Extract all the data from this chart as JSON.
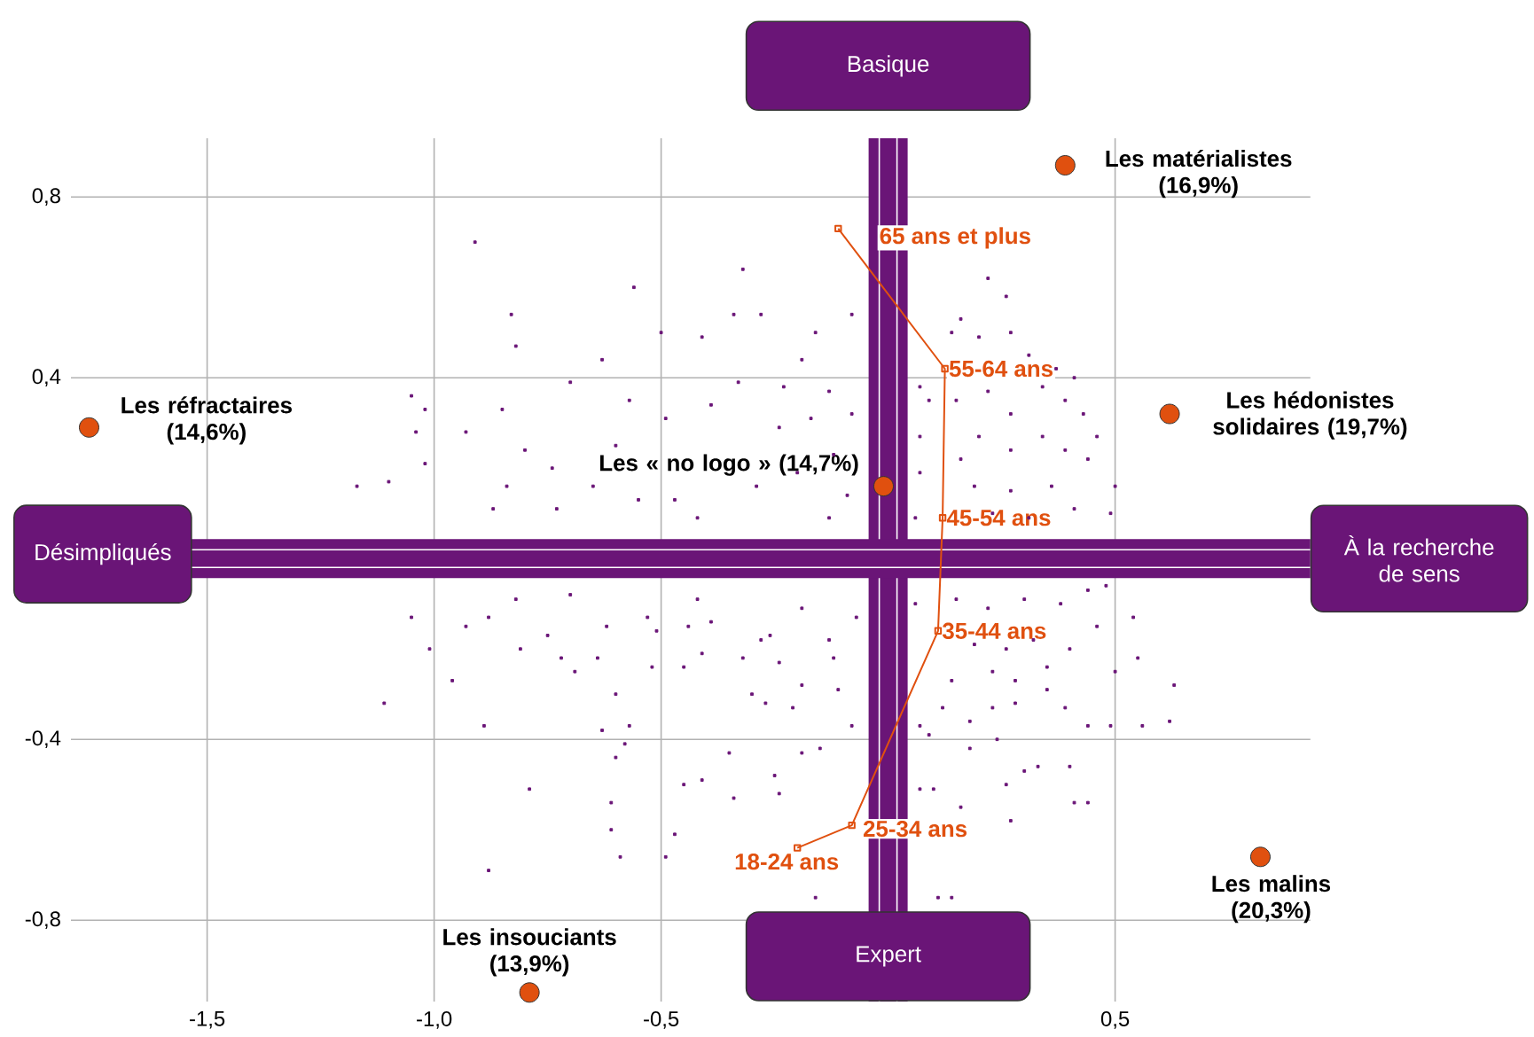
{
  "chart_data": {
    "type": "scatter",
    "xlim": [
      -1.8,
      0.93
    ],
    "ylim": [
      -0.98,
      0.93
    ],
    "xticks": [
      {
        "value": -1.5,
        "label": "-1,5"
      },
      {
        "value": -1.0,
        "label": "-1,0"
      },
      {
        "value": -0.5,
        "label": "-0,5"
      },
      {
        "value": 0.5,
        "label": "0,5"
      }
    ],
    "yticks": [
      {
        "value": -0.8,
        "label": "-0,8"
      },
      {
        "value": -0.4,
        "label": "-0,4"
      },
      {
        "value": 0.4,
        "label": "0,4"
      },
      {
        "value": 0.8,
        "label": "0,8"
      }
    ],
    "grid": true,
    "series": [
      {
        "type": "scatter",
        "color": "#6a1577",
        "marker": "square",
        "x": [
          -0.91,
          -0.32,
          -0.56,
          -0.83,
          -0.82,
          -0.34,
          -0.5,
          -0.41,
          -0.63,
          -1.05,
          -1.02,
          -1.04,
          -1.02,
          -1.17,
          -1.1,
          -0.85,
          -0.93,
          -0.8,
          -0.74,
          -0.7,
          -0.57,
          -0.84,
          -0.87,
          -0.73,
          -0.65,
          -0.55,
          -0.47,
          -0.42,
          -0.6,
          -0.49,
          -0.39,
          -0.33,
          -1.05,
          -1.01,
          -1.11,
          -0.96,
          -0.89,
          -0.79,
          -0.88,
          -0.61,
          -0.61,
          -0.59,
          -0.49,
          -0.47,
          -0.6,
          -0.58,
          -0.45,
          -0.41,
          -0.34,
          -0.35,
          -0.63,
          -0.57,
          -0.81,
          -0.72,
          -0.69,
          -0.64,
          -0.52,
          -0.6,
          -0.45,
          -0.41,
          -0.32,
          -0.3,
          -0.39,
          -0.44,
          -0.51,
          -0.62,
          -0.75,
          -0.93,
          -0.88,
          -0.82,
          -0.7,
          -0.53,
          -0.42,
          -0.26,
          0.63,
          0.62,
          0.56,
          0.54,
          0.55,
          0.5,
          0.49,
          0.44,
          0.41,
          0.4,
          0.3,
          0.33,
          0.26,
          0.27,
          0.16,
          0.1,
          0.07,
          0.14,
          0.11,
          -0.16,
          -0.24,
          -0.19,
          -0.15,
          -0.25,
          0.24,
          0.18,
          0.44,
          0.35,
          0.39,
          0.28,
          0.23,
          0.18,
          0.12,
          0.07,
          0.09,
          -0.19,
          -0.21,
          -0.08,
          -0.11,
          -0.12,
          -0.27,
          -0.24,
          -0.28,
          -0.19,
          -0.13,
          -0.07,
          0.06,
          0.15,
          0.22,
          0.3,
          0.38,
          0.44,
          0.48,
          0.19,
          0.26,
          0.32,
          0.4,
          0.46,
          0.14,
          0.23,
          0.28,
          0.35,
          0.22,
          0.26,
          0.16,
          0.14,
          0.2,
          0.27,
          0.31,
          0.37,
          0.41,
          0.07,
          0.09,
          0.15,
          0.22,
          0.27,
          0.34,
          0.39,
          0.43,
          0.46,
          0.5,
          0.49,
          0.44,
          0.39,
          0.34,
          0.27,
          0.2,
          0.16,
          0.07,
          0.07,
          0.19,
          0.27,
          0.36,
          0.41,
          0.31,
          0.23,
          0.06,
          -0.28,
          -0.08,
          -0.16,
          -0.19,
          -0.23,
          -0.13,
          -0.08,
          -0.17,
          -0.24,
          -0.12,
          -0.2,
          -0.09,
          -0.29,
          -0.13
        ],
        "values": [
          0.7,
          0.64,
          0.6,
          0.54,
          0.47,
          0.54,
          0.5,
          0.49,
          0.44,
          0.36,
          0.33,
          0.28,
          0.21,
          0.16,
          0.17,
          0.33,
          0.28,
          0.24,
          0.2,
          0.39,
          0.35,
          0.16,
          0.11,
          0.11,
          0.16,
          0.13,
          0.13,
          0.09,
          0.25,
          0.31,
          0.34,
          0.39,
          -0.13,
          -0.2,
          -0.32,
          -0.27,
          -0.37,
          -0.51,
          -0.69,
          -0.54,
          -0.6,
          -0.66,
          -0.66,
          -0.61,
          -0.44,
          -0.41,
          -0.5,
          -0.49,
          -0.53,
          -0.43,
          -0.38,
          -0.37,
          -0.2,
          -0.22,
          -0.25,
          -0.22,
          -0.24,
          -0.3,
          -0.24,
          -0.21,
          -0.22,
          -0.3,
          -0.14,
          -0.15,
          -0.16,
          -0.15,
          -0.17,
          -0.15,
          -0.13,
          -0.09,
          -0.08,
          -0.13,
          -0.09,
          -0.17,
          -0.28,
          -0.36,
          -0.37,
          -0.13,
          -0.22,
          -0.25,
          -0.37,
          -0.54,
          -0.54,
          -0.46,
          -0.47,
          -0.46,
          -0.5,
          -0.58,
          -0.55,
          -0.51,
          -0.51,
          -0.75,
          -0.75,
          -0.75,
          -0.52,
          -0.43,
          -0.42,
          -0.48,
          -0.4,
          -0.42,
          -0.37,
          -0.29,
          -0.33,
          -0.32,
          -0.33,
          -0.36,
          -0.33,
          -0.37,
          -0.39,
          -0.28,
          -0.33,
          -0.37,
          -0.29,
          -0.22,
          -0.32,
          -0.23,
          -0.18,
          -0.11,
          -0.18,
          -0.13,
          -0.1,
          -0.09,
          -0.11,
          -0.09,
          -0.1,
          -0.07,
          -0.06,
          -0.19,
          -0.2,
          -0.18,
          -0.2,
          -0.15,
          -0.27,
          -0.25,
          -0.27,
          -0.24,
          0.62,
          0.58,
          0.53,
          0.5,
          0.49,
          0.5,
          0.45,
          0.42,
          0.4,
          0.38,
          0.35,
          0.35,
          0.37,
          0.32,
          0.38,
          0.35,
          0.32,
          0.27,
          0.16,
          0.1,
          0.22,
          0.24,
          0.27,
          0.24,
          0.27,
          0.22,
          0.27,
          0.19,
          0.16,
          0.15,
          0.16,
          0.11,
          0.09,
          0.1,
          0.09,
          0.54,
          0.54,
          0.5,
          0.44,
          0.38,
          0.37,
          0.32,
          0.31,
          0.29,
          0.23,
          0.19,
          0.14,
          0.16,
          0.09
        ]
      },
      {
        "type": "scatter",
        "color": "#e0500f",
        "marker": "circle",
        "x": [
          -1.76,
          -0.01,
          0.39,
          0.62,
          0.82,
          -0.79
        ],
        "values": [
          0.29,
          0.16,
          0.87,
          0.32,
          -0.66,
          -0.96
        ]
      },
      {
        "type": "line",
        "color": "#e0500f",
        "marker": "square",
        "x": [
          -0.2,
          -0.08,
          0.11,
          0.12,
          0.125,
          -0.11
        ],
        "values": [
          -0.64,
          -0.59,
          -0.16,
          0.09,
          0.42,
          0.73
        ]
      }
    ],
    "ref_lines": [
      {
        "axis": "x",
        "value": 0,
        "color": "#6a1577"
      },
      {
        "axis": "y",
        "value": 0,
        "color": "#6a1577"
      }
    ],
    "annotations": [
      "Basique",
      "Expert",
      "Désimpliqués",
      "À la recherche de sens",
      {
        "text": "Les réfractaires (14,6%)",
        "x": -1.76,
        "y": 0.29
      },
      {
        "text": "Les « no logo » (14,7%)",
        "x": -0.01,
        "y": 0.16
      },
      {
        "text": "Les matérialistes (16,9%)",
        "x": 0.39,
        "y": 0.87
      },
      {
        "text": "Les hédonistes solidaires (19,7%)",
        "x": 0.62,
        "y": 0.32
      },
      {
        "text": "Les malins (20,3%)",
        "x": 0.82,
        "y": -0.66
      },
      {
        "text": "Les insouciants (13,9%)",
        "x": -0.79,
        "y": -0.96
      },
      {
        "text": "18-24 ans",
        "x": -0.2,
        "y": -0.64
      },
      {
        "text": "25-34 ans",
        "x": -0.08,
        "y": -0.59
      },
      {
        "text": "35-44 ans",
        "x": 0.11,
        "y": -0.16
      },
      {
        "text": "45-54 ans",
        "x": 0.12,
        "y": 0.09
      },
      {
        "text": "55-64 ans",
        "x": 0.125,
        "y": 0.42
      },
      {
        "text": "65 ans et plus",
        "x": -0.11,
        "y": 0.73
      }
    ]
  }
}
